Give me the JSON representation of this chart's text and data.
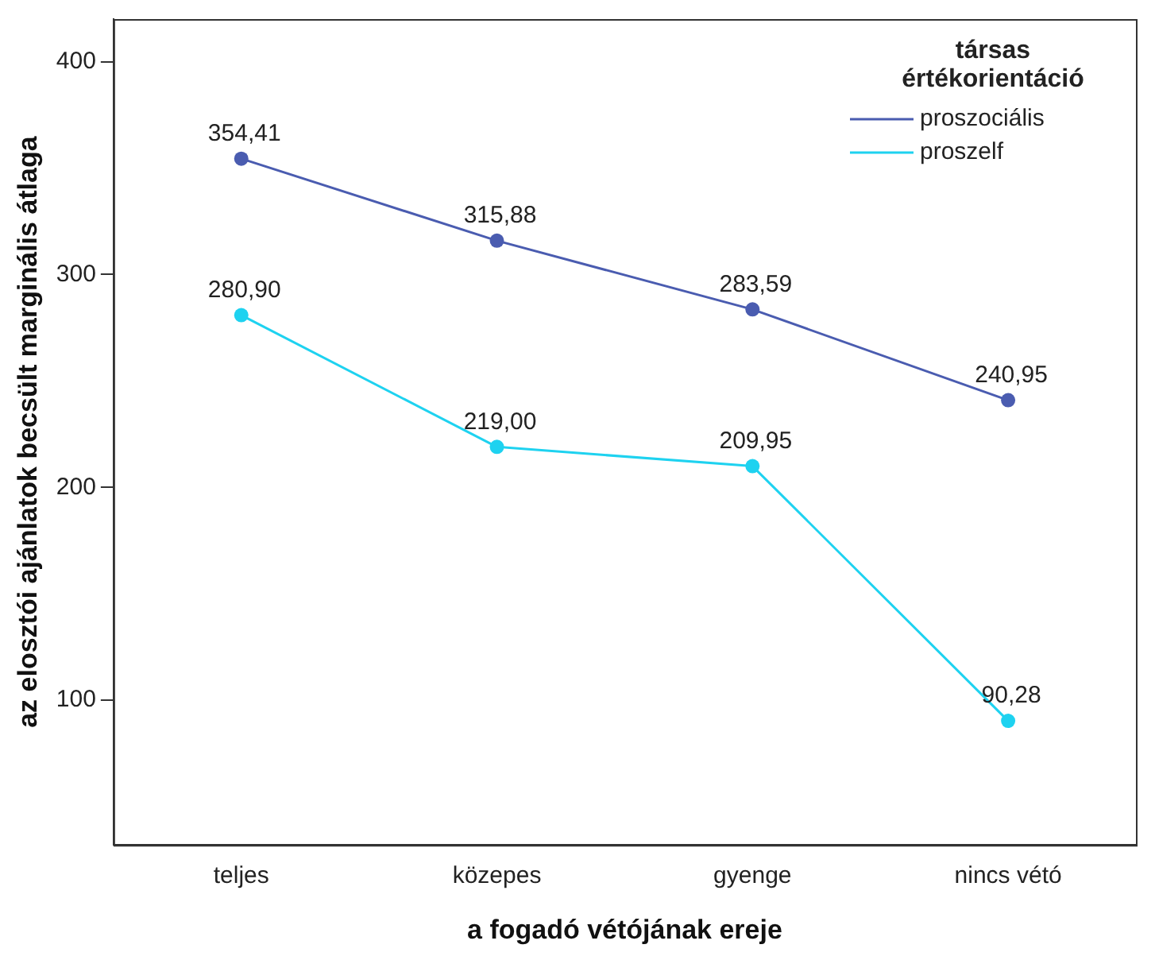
{
  "chart_data": {
    "type": "line",
    "xlabel": "a fogadó vétójának ereje",
    "ylabel": "az elosztói ajánlatok becsült marginális átlaga",
    "legend_title": "társas értékorientáció",
    "legend": "top right",
    "marker": "circle",
    "grid": false,
    "categories": [
      "teljes",
      "közepes",
      "gyenge",
      "nincs vétó"
    ],
    "ylim": [
      32,
      420
    ],
    "yticks": [
      100,
      200,
      300,
      400
    ],
    "series": [
      {
        "name": "proszociális",
        "color": "#4a5cb0",
        "values": [
          354.41,
          315.88,
          283.59,
          240.95
        ],
        "value_labels": [
          "354,41",
          "315,88",
          "283,59",
          "240,95"
        ]
      },
      {
        "name": "proszelf",
        "color": "#1ed2f0",
        "values": [
          280.9,
          219.0,
          209.95,
          90.28
        ],
        "value_labels": [
          "280,90",
          "219,00",
          "209,95",
          "90,28"
        ]
      }
    ]
  }
}
